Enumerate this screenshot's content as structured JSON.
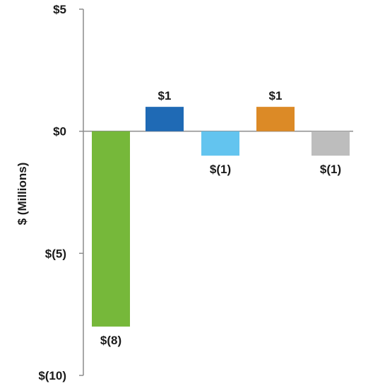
{
  "chart_data": {
    "type": "bar",
    "title": "",
    "xlabel": "",
    "ylabel": "$ (Millions)",
    "ylim": [
      -10,
      5
    ],
    "yticks": [
      {
        "value": 5,
        "label": "$5"
      },
      {
        "value": 0,
        "label": "$0"
      },
      {
        "value": -5,
        "label": "$(5)"
      },
      {
        "value": -10,
        "label": "$(10)"
      }
    ],
    "categories": [
      "",
      "",
      "",
      "",
      ""
    ],
    "values": [
      -8,
      1,
      -1,
      1,
      -1
    ],
    "data_labels": [
      "$(8)",
      "$1",
      "$(1)",
      "$1",
      "$(1)"
    ],
    "colors": [
      "#76b83a",
      "#1f6ab5",
      "#63c4ef",
      "#dc8a26",
      "#bdbdbd"
    ],
    "axis_color": "#8c8c8c",
    "grid": false,
    "legend": "none"
  }
}
